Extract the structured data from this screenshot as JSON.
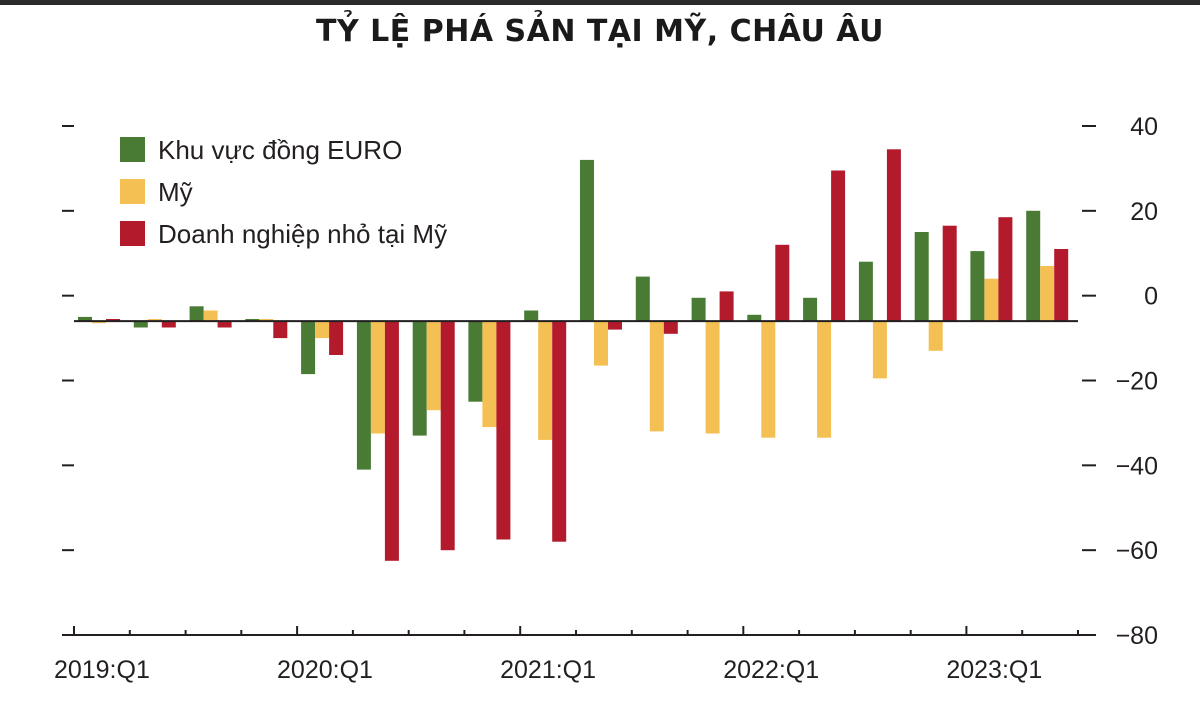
{
  "title": "TỶ LỆ PHÁ SẢN TẠI MỸ, CHÂU ÂU",
  "chart_data": {
    "type": "bar",
    "title": "TỶ LỆ PHÁ SẢN TẠI MỸ, CHÂU ÂU",
    "xlabel": "",
    "ylabel": "",
    "ylim": [
      -80,
      40
    ],
    "y_ticks": [
      40,
      20,
      0,
      -20,
      -40,
      -60,
      -80
    ],
    "y_tick_labels": [
      "40",
      "20",
      "0",
      "−20",
      "−40",
      "−60",
      "−80"
    ],
    "y_axis_side": "right",
    "baseline": -6,
    "x_tick_labels": [
      "2019:Q1",
      "2020:Q1",
      "2021:Q1",
      "2022:Q1",
      "2023:Q1"
    ],
    "categories": [
      "2019:Q1",
      "2019:Q2",
      "2019:Q3",
      "2019:Q4",
      "2020:Q1",
      "2020:Q2",
      "2020:Q3",
      "2020:Q4",
      "2021:Q1",
      "2021:Q2",
      "2021:Q3",
      "2021:Q4",
      "2022:Q1",
      "2022:Q2",
      "2022:Q3",
      "2022:Q4",
      "2023:Q1",
      "2023:Q2"
    ],
    "legend_position": "top-left",
    "grid": false,
    "series": [
      {
        "name": "Khu vực đồng EURO",
        "color": "#4a7b35",
        "values": [
          -5,
          -7.5,
          -2.5,
          -5.5,
          -18.5,
          -41,
          -33,
          -25,
          -3.5,
          32,
          4.5,
          -0.5,
          -4.5,
          -0.5,
          8,
          15,
          10.5,
          20
        ]
      },
      {
        "name": "Mỹ",
        "color": "#f5c053",
        "values": [
          -6.5,
          -5.5,
          -3.5,
          -5.5,
          -10,
          -32.5,
          -27,
          -31,
          -34,
          -16.5,
          -32,
          -32.5,
          -33.5,
          -33.5,
          -19.5,
          -13,
          4,
          7
        ]
      },
      {
        "name": "Doanh nghiệp nhỏ tại Mỹ",
        "color": "#b31b2d",
        "values": [
          -5.5,
          -7.5,
          -7.5,
          -10,
          -14,
          -62.5,
          -60,
          -57.5,
          -58,
          -8,
          -9,
          1,
          12,
          29.5,
          34.5,
          16.5,
          18.5,
          11
        ]
      }
    ]
  }
}
